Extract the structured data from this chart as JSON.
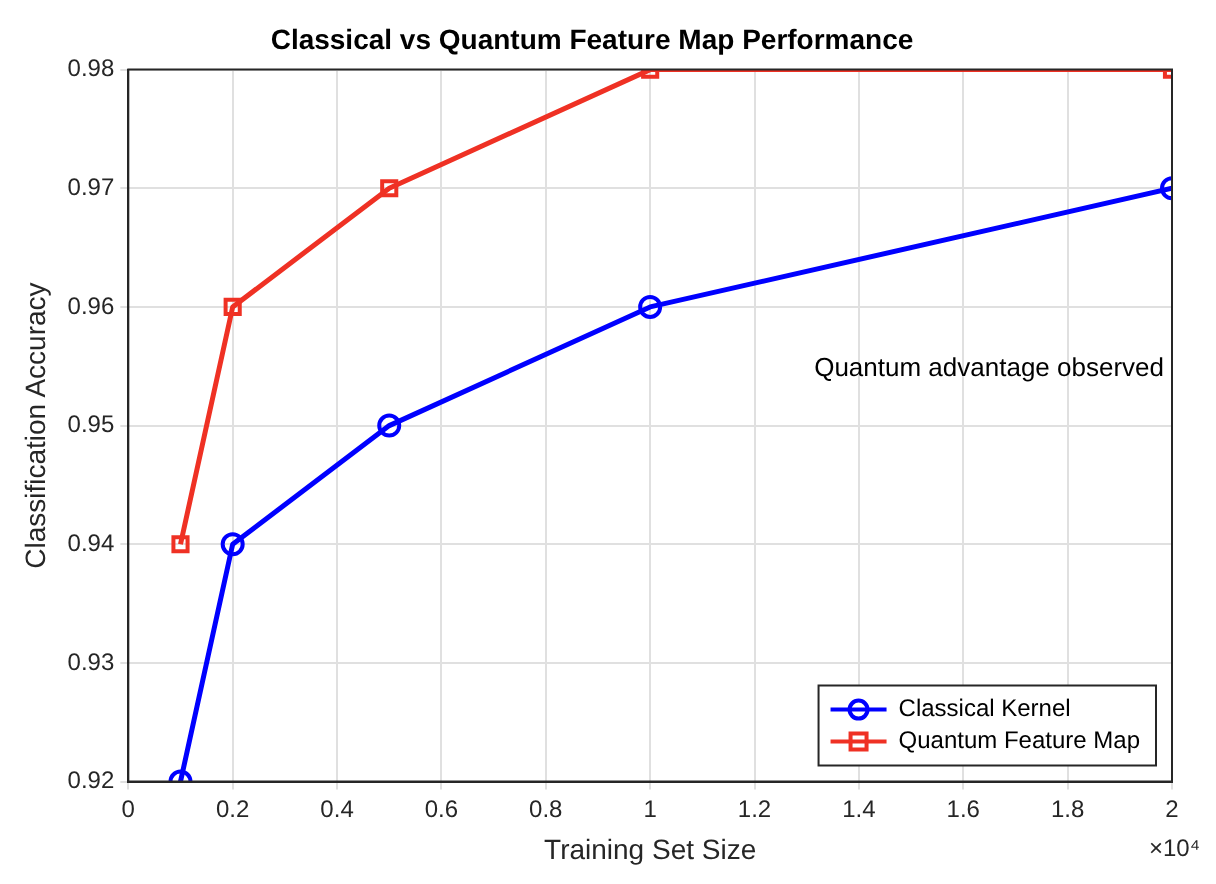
{
  "chart_data": {
    "type": "line",
    "title": "Classical vs Quantum Feature Map Performance",
    "xlabel": "Training Set Size",
    "ylabel": "Classification Accuracy",
    "x": [
      0.1,
      0.2,
      0.5,
      1,
      2
    ],
    "series": [
      {
        "name": "Classical Kernel",
        "color": "#0000ff",
        "marker": "circle",
        "values": [
          0.92,
          0.94,
          0.95,
          0.96,
          0.97
        ]
      },
      {
        "name": "Quantum Feature Map",
        "color": "#ef3124",
        "marker": "square",
        "values": [
          0.94,
          0.96,
          0.97,
          0.98,
          0.98
        ]
      }
    ],
    "xlim": [
      0,
      2
    ],
    "xticks": [
      0,
      0.2,
      0.4,
      0.6,
      0.8,
      1,
      1.2,
      1.4,
      1.6,
      1.8,
      2
    ],
    "ylim": [
      0.92,
      0.98
    ],
    "yticks": [
      0.92,
      0.93,
      0.94,
      0.95,
      0.96,
      0.97,
      0.98
    ],
    "grid": true,
    "legend": "bottom right",
    "line_style": "solid",
    "annotations": [
      "Quantum advantage observed",
      "×10⁴"
    ]
  }
}
